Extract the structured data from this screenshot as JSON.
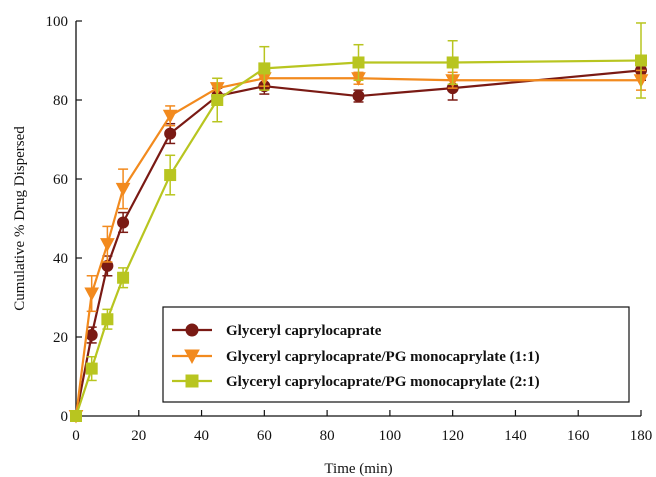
{
  "chart_data": {
    "type": "line",
    "xlabel": "Time (min)",
    "ylabel": "Cumulative % Drug Dispersed",
    "xlim": [
      0,
      180
    ],
    "ylim": [
      0,
      100
    ],
    "xticks": [
      0,
      20,
      40,
      60,
      80,
      100,
      120,
      140,
      160,
      180
    ],
    "yticks": [
      0,
      20,
      40,
      60,
      80,
      100
    ],
    "xtick_labels": [
      "0",
      "20",
      "40",
      "60",
      "80",
      "100",
      "120",
      "140",
      "160",
      "180"
    ],
    "ytick_labels": [
      "0",
      "20",
      "40",
      "60",
      "80",
      "100"
    ],
    "grid": false,
    "legend_position": "bottom-right",
    "series": [
      {
        "name": "Glyceryl caprylocaprate",
        "color": "#7a1a14",
        "marker": "circle",
        "x": [
          0,
          5,
          10,
          15,
          30,
          45,
          60,
          90,
          120,
          180
        ],
        "y": [
          0,
          20.5,
          38,
          49,
          71.5,
          81,
          83.5,
          81,
          83,
          87.5
        ],
        "err": [
          0,
          2,
          2.5,
          2.5,
          2.5,
          2,
          2,
          1.5,
          3,
          2.5
        ]
      },
      {
        "name": "Glyceryl caprylocaprate/PG monocaprylate (1:1)",
        "color": "#f28a1e",
        "marker": "triangle-down",
        "x": [
          0,
          5,
          10,
          15,
          30,
          45,
          60,
          90,
          120,
          180
        ],
        "y": [
          0,
          31,
          43.5,
          57.5,
          76,
          83,
          85.5,
          85.5,
          85,
          85
        ],
        "err": [
          0,
          4.5,
          4.5,
          5,
          2.5,
          2.5,
          2,
          1.5,
          2,
          2.5
        ]
      },
      {
        "name": "Glyceryl caprylocaprate/PG monocaprylate (2:1)",
        "color": "#b8c520",
        "marker": "square",
        "x": [
          0,
          5,
          10,
          15,
          30,
          45,
          60,
          90,
          120,
          180
        ],
        "y": [
          0,
          12,
          24.5,
          35,
          61,
          80,
          88,
          89.5,
          89.5,
          90
        ],
        "err": [
          0,
          3,
          2.5,
          2.5,
          5,
          5.5,
          5.5,
          4.5,
          5.5,
          9.5
        ]
      }
    ]
  }
}
